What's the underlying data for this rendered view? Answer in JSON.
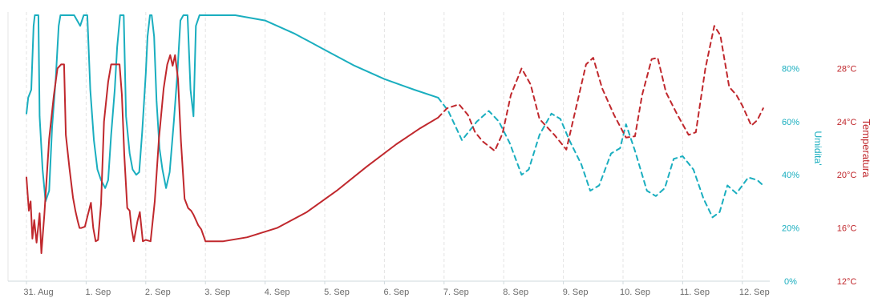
{
  "chart_data": {
    "type": "line",
    "x_categories": [
      "31. Aug",
      "1. Sep",
      "2. Sep",
      "3. Sep",
      "4. Sep",
      "5. Sep",
      "6. Sep",
      "7. Sep",
      "8. Sep",
      "9. Sep",
      "10. Sep",
      "11. Sep",
      "12. Sep"
    ],
    "axes": {
      "humidity": {
        "label": "Umidita'",
        "color": "#1aaebf",
        "ylim": [
          0,
          100
        ],
        "ticks": [
          "0%",
          "20%",
          "40%",
          "60%",
          "80%"
        ],
        "tick_values": [
          0,
          20,
          40,
          60,
          80
        ]
      },
      "temperature": {
        "label": "Temperatura",
        "color": "#c0282d",
        "ylim": [
          12,
          32
        ],
        "ticks": [
          "12°C",
          "16°C",
          "20°C",
          "24°C",
          "28°C"
        ],
        "tick_values": [
          12,
          16,
          20,
          24,
          28
        ]
      }
    },
    "grid": "vertical-dashed",
    "legend": "none",
    "series": [
      {
        "axis": "humidity",
        "style": "solid",
        "points": [
          [
            0.0,
            63
          ],
          [
            0.03,
            69
          ],
          [
            0.08,
            72
          ],
          [
            0.12,
            96
          ],
          [
            0.14,
            100
          ],
          [
            0.2,
            100
          ],
          [
            0.22,
            62
          ],
          [
            0.27,
            42
          ],
          [
            0.32,
            30
          ],
          [
            0.38,
            34
          ],
          [
            0.43,
            58
          ],
          [
            0.49,
            76
          ],
          [
            0.54,
            96
          ],
          [
            0.57,
            100
          ],
          [
            0.7,
            100
          ],
          [
            0.8,
            100
          ],
          [
            0.9,
            96
          ],
          [
            0.96,
            100
          ],
          [
            1.02,
            100
          ],
          [
            1.07,
            72
          ],
          [
            1.13,
            53
          ],
          [
            1.19,
            42
          ],
          [
            1.25,
            38
          ],
          [
            1.32,
            35
          ],
          [
            1.37,
            38
          ],
          [
            1.42,
            55
          ],
          [
            1.48,
            72
          ],
          [
            1.52,
            88
          ],
          [
            1.57,
            100
          ],
          [
            1.63,
            100
          ],
          [
            1.67,
            62
          ],
          [
            1.73,
            48
          ],
          [
            1.78,
            42
          ],
          [
            1.84,
            40
          ],
          [
            1.89,
            41
          ],
          [
            1.94,
            56
          ],
          [
            2.0,
            78
          ],
          [
            2.03,
            92
          ],
          [
            2.07,
            100
          ],
          [
            2.1,
            100
          ],
          [
            2.14,
            92
          ],
          [
            2.18,
            68
          ],
          [
            2.23,
            50
          ],
          [
            2.28,
            42
          ],
          [
            2.34,
            35
          ],
          [
            2.4,
            41
          ],
          [
            2.47,
            60
          ],
          [
            2.53,
            78
          ],
          [
            2.58,
            98
          ],
          [
            2.63,
            100
          ],
          [
            2.7,
            100
          ],
          [
            2.75,
            72
          ],
          [
            2.8,
            62
          ],
          [
            2.84,
            96
          ],
          [
            2.9,
            100
          ],
          [
            3.5,
            100
          ],
          [
            4.0,
            98
          ],
          [
            4.5,
            93
          ],
          [
            5.0,
            87
          ],
          [
            5.5,
            81
          ],
          [
            6.0,
            76
          ],
          [
            6.5,
            72
          ],
          [
            6.9,
            69
          ]
        ]
      },
      {
        "axis": "humidity",
        "style": "dashed",
        "points": [
          [
            6.9,
            69
          ],
          [
            7.07,
            64
          ],
          [
            7.3,
            53
          ],
          [
            7.55,
            60
          ],
          [
            7.75,
            64
          ],
          [
            7.92,
            60
          ],
          [
            8.1,
            52
          ],
          [
            8.3,
            40
          ],
          [
            8.42,
            42
          ],
          [
            8.6,
            55
          ],
          [
            8.8,
            63
          ],
          [
            8.95,
            61
          ],
          [
            9.1,
            53
          ],
          [
            9.3,
            44
          ],
          [
            9.45,
            34
          ],
          [
            9.6,
            36
          ],
          [
            9.8,
            48
          ],
          [
            9.95,
            50
          ],
          [
            10.05,
            59
          ],
          [
            10.2,
            49
          ],
          [
            10.4,
            34
          ],
          [
            10.55,
            32
          ],
          [
            10.7,
            35
          ],
          [
            10.85,
            46
          ],
          [
            11.0,
            47
          ],
          [
            11.18,
            42
          ],
          [
            11.35,
            31
          ],
          [
            11.5,
            24
          ],
          [
            11.62,
            26
          ],
          [
            11.75,
            36
          ],
          [
            11.9,
            33
          ],
          [
            12.0,
            36
          ],
          [
            12.1,
            39
          ],
          [
            12.25,
            38
          ],
          [
            12.35,
            36
          ]
        ]
      },
      {
        "axis": "temperature",
        "style": "solid",
        "points": [
          [
            0.0,
            19.8
          ],
          [
            0.04,
            17.3
          ],
          [
            0.07,
            18.0
          ],
          [
            0.1,
            15.2
          ],
          [
            0.13,
            16.6
          ],
          [
            0.17,
            14.9
          ],
          [
            0.22,
            17.1
          ],
          [
            0.25,
            14.1
          ],
          [
            0.3,
            17.0
          ],
          [
            0.38,
            22.7
          ],
          [
            0.46,
            26.0
          ],
          [
            0.52,
            28.0
          ],
          [
            0.58,
            28.3
          ],
          [
            0.63,
            28.3
          ],
          [
            0.66,
            23.0
          ],
          [
            0.72,
            20.5
          ],
          [
            0.78,
            18.3
          ],
          [
            0.82,
            17.3
          ],
          [
            0.86,
            16.5
          ],
          [
            0.89,
            16.0
          ],
          [
            0.92,
            16.0
          ],
          [
            0.98,
            16.1
          ],
          [
            1.03,
            17.0
          ],
          [
            1.08,
            17.9
          ],
          [
            1.12,
            16.0
          ],
          [
            1.16,
            15.0
          ],
          [
            1.2,
            15.1
          ],
          [
            1.25,
            17.8
          ],
          [
            1.3,
            24.0
          ],
          [
            1.37,
            27.0
          ],
          [
            1.42,
            28.3
          ],
          [
            1.5,
            28.3
          ],
          [
            1.56,
            28.3
          ],
          [
            1.6,
            26.0
          ],
          [
            1.64,
            21.5
          ],
          [
            1.69,
            17.5
          ],
          [
            1.73,
            17.3
          ],
          [
            1.76,
            16.0
          ],
          [
            1.8,
            15.0
          ],
          [
            1.86,
            16.5
          ],
          [
            1.9,
            17.2
          ],
          [
            1.95,
            15.0
          ],
          [
            2.0,
            15.1
          ],
          [
            2.08,
            15.0
          ],
          [
            2.15,
            18.0
          ],
          [
            2.22,
            22.7
          ],
          [
            2.3,
            26.5
          ],
          [
            2.36,
            28.3
          ],
          [
            2.41,
            29.0
          ],
          [
            2.45,
            28.2
          ],
          [
            2.49,
            29.0
          ],
          [
            2.54,
            27.2
          ],
          [
            2.59,
            22.5
          ],
          [
            2.65,
            18.2
          ],
          [
            2.71,
            17.5
          ],
          [
            2.76,
            17.3
          ],
          [
            2.8,
            17.0
          ],
          [
            2.88,
            16.2
          ],
          [
            2.93,
            15.9
          ],
          [
            3.0,
            15.0
          ],
          [
            3.3,
            15.0
          ],
          [
            3.7,
            15.3
          ],
          [
            4.2,
            16.0
          ],
          [
            4.7,
            17.2
          ],
          [
            5.2,
            18.8
          ],
          [
            5.7,
            20.6
          ],
          [
            6.2,
            22.3
          ],
          [
            6.6,
            23.5
          ],
          [
            6.9,
            24.3
          ]
        ]
      },
      {
        "axis": "temperature",
        "style": "dashed",
        "points": [
          [
            6.9,
            24.3
          ],
          [
            7.05,
            25.0
          ],
          [
            7.25,
            25.3
          ],
          [
            7.4,
            24.5
          ],
          [
            7.52,
            23.2
          ],
          [
            7.65,
            22.5
          ],
          [
            7.85,
            21.8
          ],
          [
            7.98,
            23.1
          ],
          [
            8.12,
            26.0
          ],
          [
            8.3,
            28.0
          ],
          [
            8.45,
            26.8
          ],
          [
            8.6,
            24.2
          ],
          [
            8.85,
            23.0
          ],
          [
            9.05,
            21.9
          ],
          [
            9.22,
            25.2
          ],
          [
            9.38,
            28.3
          ],
          [
            9.5,
            28.8
          ],
          [
            9.65,
            26.5
          ],
          [
            9.85,
            24.5
          ],
          [
            10.05,
            22.8
          ],
          [
            10.2,
            22.9
          ],
          [
            10.32,
            26.0
          ],
          [
            10.48,
            28.7
          ],
          [
            10.58,
            28.8
          ],
          [
            10.72,
            26.2
          ],
          [
            10.9,
            24.6
          ],
          [
            11.1,
            23.0
          ],
          [
            11.22,
            23.2
          ],
          [
            11.38,
            28.0
          ],
          [
            11.53,
            31.2
          ],
          [
            11.63,
            30.5
          ],
          [
            11.78,
            26.6
          ],
          [
            11.9,
            26.0
          ],
          [
            12.0,
            25.2
          ],
          [
            12.15,
            23.7
          ],
          [
            12.25,
            24.1
          ],
          [
            12.35,
            25.0
          ]
        ]
      }
    ]
  }
}
